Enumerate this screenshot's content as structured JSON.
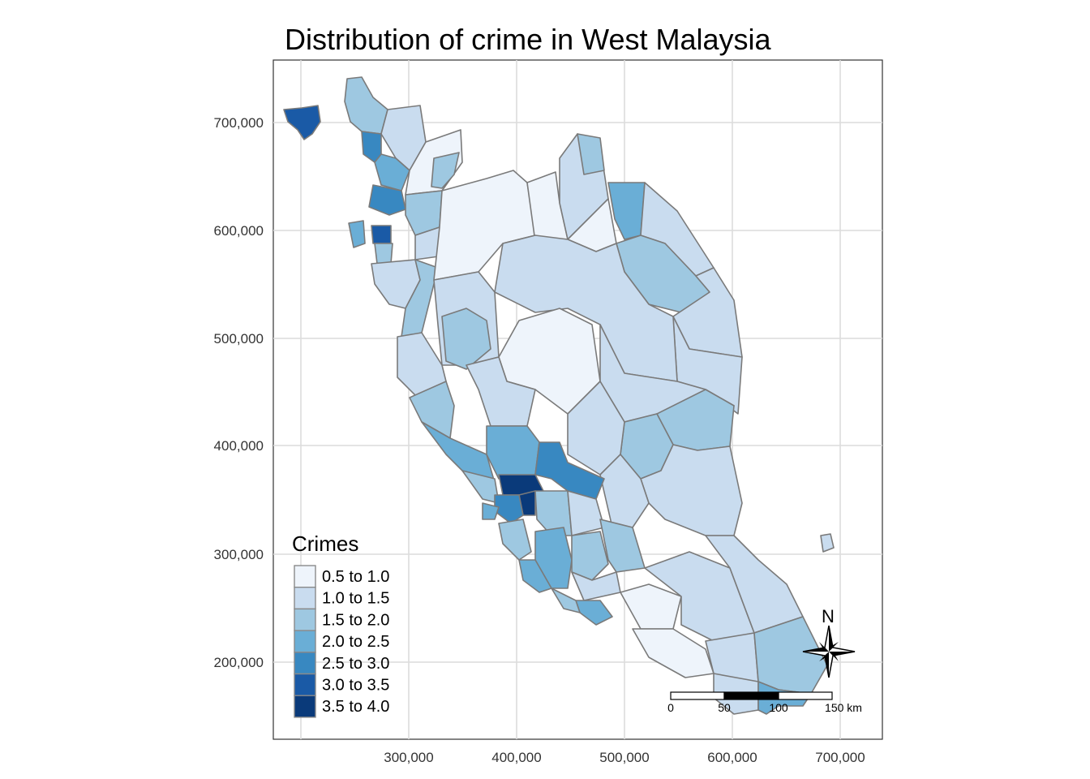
{
  "map": {
    "title": "Distribution of crime in West Malaysia",
    "x_ticks": [
      "300,000",
      "400,000",
      "500,000",
      "600,000",
      "700,000"
    ],
    "y_ticks": [
      "700,000",
      "600,000",
      "500,000",
      "400,000",
      "300,000",
      "200,000"
    ],
    "grid": true,
    "colors": {
      "background": "#ffffff",
      "panel_border": "#333333",
      "gridline": "#dcdcdc",
      "region_border": "#7a7a7a"
    }
  },
  "legend": {
    "title": "Crimes",
    "placement": "bottom-left",
    "items": [
      {
        "label": "0.5 to 1.0",
        "color": "#eef4fb"
      },
      {
        "label": "1.0 to 1.5",
        "color": "#c9dcef"
      },
      {
        "label": "1.5 to 2.0",
        "color": "#9ec8e1"
      },
      {
        "label": "2.0 to 2.5",
        "color": "#6aaed6"
      },
      {
        "label": "2.5 to 3.0",
        "color": "#3888c1"
      },
      {
        "label": "3.0 to 3.5",
        "color": "#1a5aa6"
      },
      {
        "label": "3.5 to 4.0",
        "color": "#0a3a7a"
      }
    ]
  },
  "scale_bar": {
    "labels": [
      "0",
      "50",
      "100",
      "150 km"
    ]
  },
  "north_arrow": {
    "label": "N",
    "icon": "compass-star-icon"
  }
}
